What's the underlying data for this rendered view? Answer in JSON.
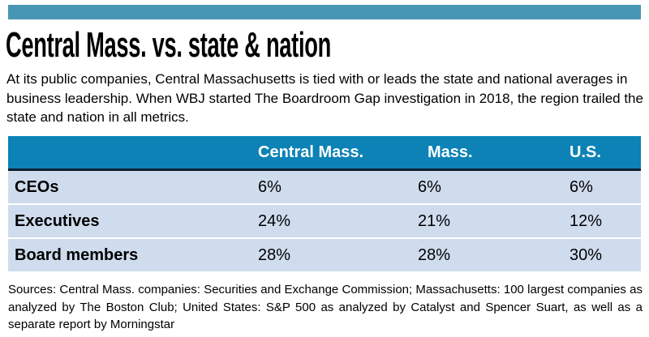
{
  "title": "Central Mass. vs. state & nation",
  "intro": "At its public companies, Central Massachusetts is tied with or leads the state and national averages in business leadership. When WBJ started The Boardroom Gap investigation in 2018, the region trailed the state and nation in all metrics.",
  "table": {
    "columns": [
      "",
      "Central Mass.",
      "Mass.",
      "U.S."
    ],
    "rows": [
      {
        "label": "CEOs",
        "values": [
          "6%",
          "6%",
          "6%"
        ]
      },
      {
        "label": "Executives",
        "values": [
          "24%",
          "21%",
          "12%"
        ]
      },
      {
        "label": "Board members",
        "values": [
          "28%",
          "28%",
          "30%"
        ]
      }
    ]
  },
  "sources": "Sources: Central Mass. companies: Securities and Exchange Commission; Massachusetts: 100 largest companies as analyzed by The Boston Club; United States: S&P 500 as analyzed by Catalyst and Spencer Suart, as well as a separate report by Morningstar",
  "colors": {
    "top_accent_bar": "#4796b4",
    "table_header_bg": "#0c82b6",
    "table_header_underline": "#0d2130",
    "table_row_bg": "#cfdcee",
    "header_text": "#ffffff",
    "body_text": "#000000"
  },
  "chart_data": {
    "type": "table",
    "title": "Central Mass. vs. state & nation",
    "categories": [
      "CEOs",
      "Executives",
      "Board members"
    ],
    "series": [
      {
        "name": "Central Mass.",
        "values": [
          6,
          24,
          28
        ]
      },
      {
        "name": "Mass.",
        "values": [
          6,
          21,
          28
        ]
      },
      {
        "name": "U.S.",
        "values": [
          6,
          12,
          30
        ]
      }
    ],
    "unit": "%",
    "notes": "Values shown as percentages in a comparison table; no axes or gridlines."
  }
}
